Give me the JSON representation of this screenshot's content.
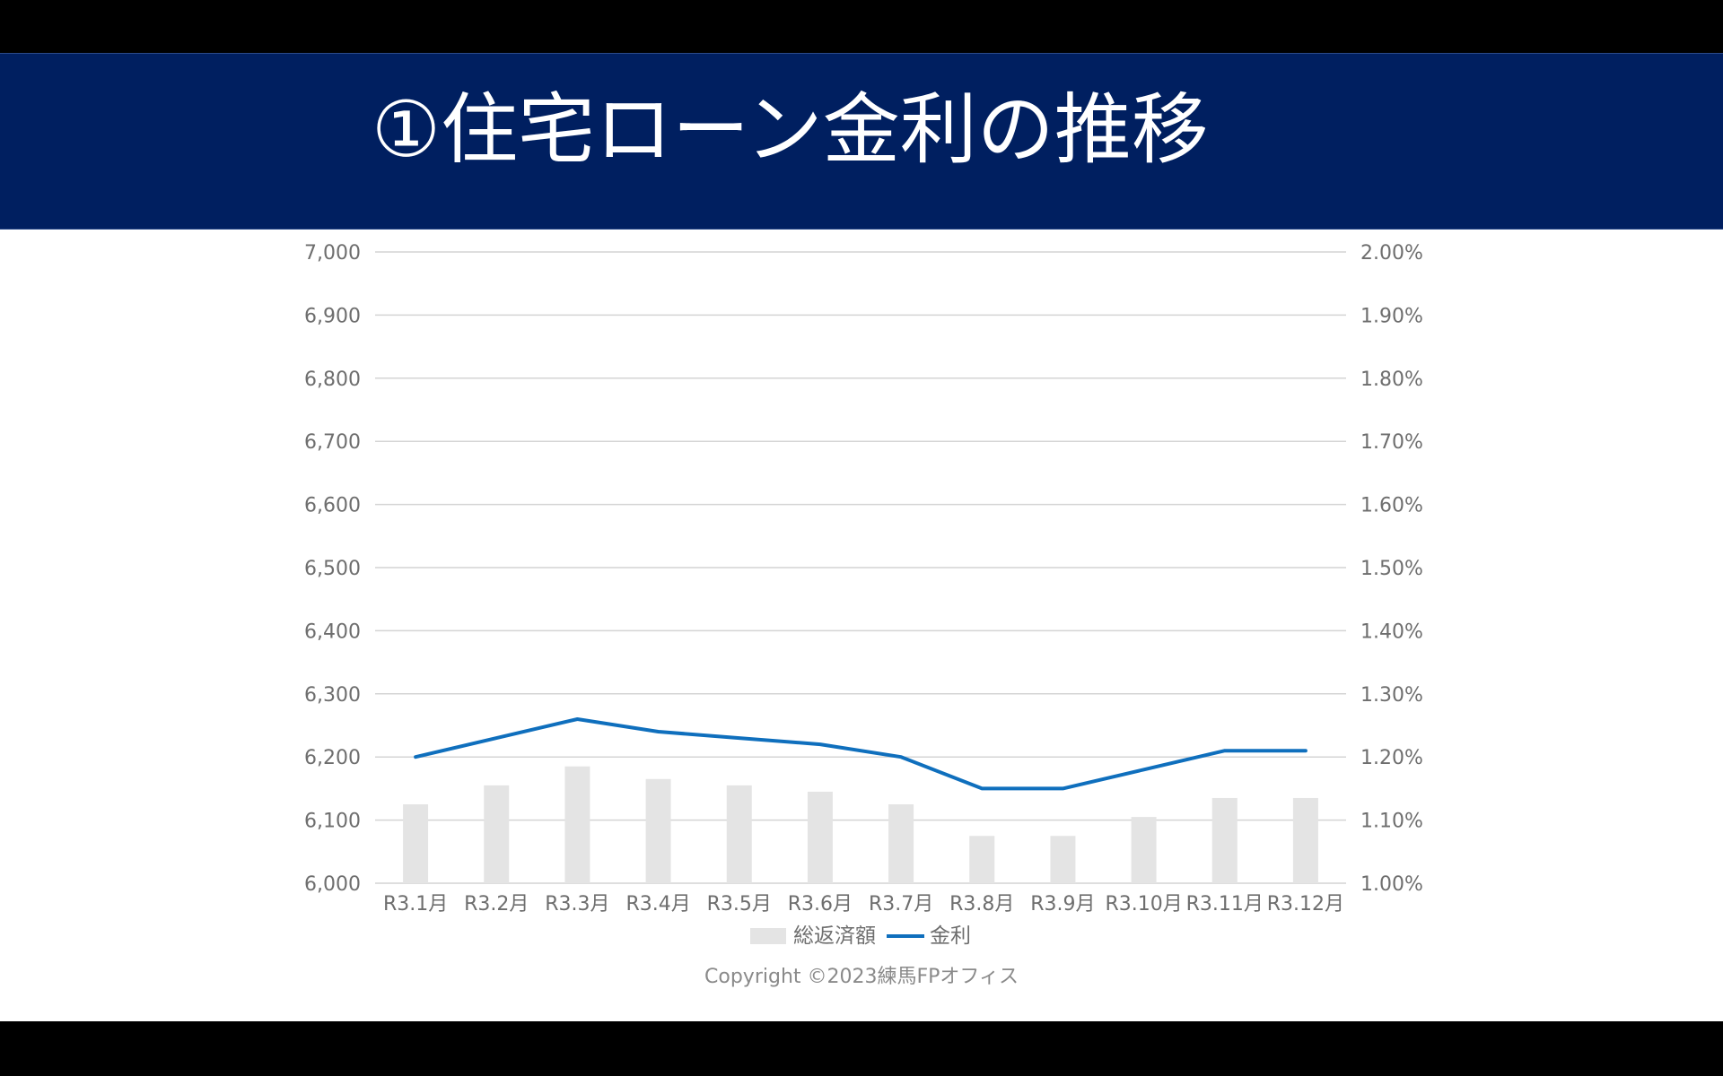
{
  "title": "①住宅ローン金利の推移",
  "copyright": "Copyright ©2023練馬FPオフィス",
  "colors": {
    "title_band": "#001f60",
    "bar": "#e4e4e4",
    "line": "#0f6fbd",
    "grid": "#d4d4d4",
    "tick_text": "#6e6e6e"
  },
  "chart_data": {
    "type": "bar",
    "categories": [
      "R3.1月",
      "R3.2月",
      "R3.3月",
      "R3.4月",
      "R3.5月",
      "R3.6月",
      "R3.7月",
      "R3.8月",
      "R3.9月",
      "R3.10月",
      "R3.11月",
      "R3.12月"
    ],
    "series": [
      {
        "name": "総返済額",
        "type": "bar",
        "axis": "left",
        "values": [
          6125,
          6155,
          6185,
          6165,
          6155,
          6145,
          6125,
          6075,
          6075,
          6105,
          6135,
          6135
        ]
      },
      {
        "name": "金利",
        "type": "line",
        "axis": "right",
        "values": [
          1.2,
          1.23,
          1.26,
          1.24,
          1.23,
          1.22,
          1.2,
          1.15,
          1.15,
          1.18,
          1.21,
          1.21
        ]
      }
    ],
    "ylim": [
      6000,
      7000
    ],
    "y_ticks": [
      "6,000",
      "6,100",
      "6,200",
      "6,300",
      "6,400",
      "6,500",
      "6,600",
      "6,700",
      "6,800",
      "6,900",
      "7,000"
    ],
    "y2lim": [
      1.0,
      2.0
    ],
    "y2_ticks": [
      "1.00%",
      "1.10%",
      "1.20%",
      "1.30%",
      "1.40%",
      "1.50%",
      "1.60%",
      "1.70%",
      "1.80%",
      "1.90%",
      "2.00%"
    ],
    "grid": true,
    "legend_position": "bottom"
  }
}
